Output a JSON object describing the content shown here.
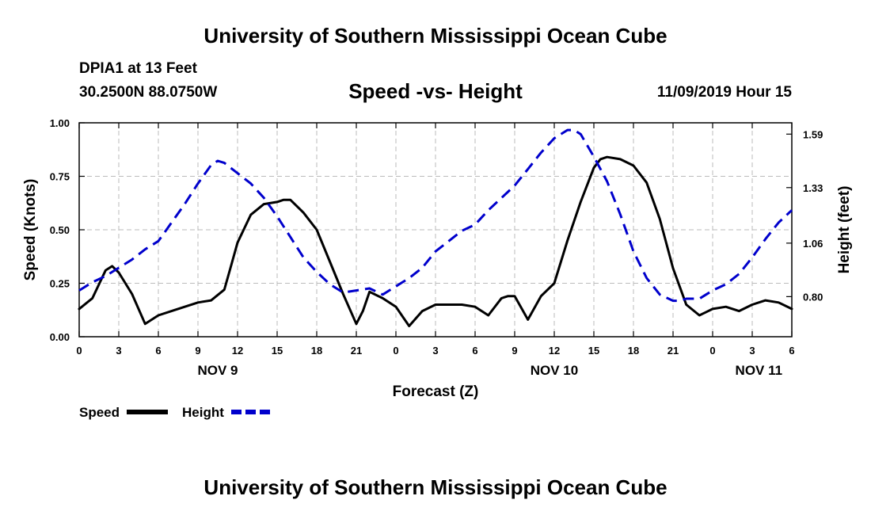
{
  "header": {
    "top_title": "University of Southern Mississippi Ocean Cube",
    "station": "DPIA1 at 13 Feet",
    "coords": "30.2500N 88.0750W",
    "date": "11/09/2019 Hour 15",
    "bottom_title": "University of Southern Mississippi Ocean Cube"
  },
  "chart_data": {
    "type": "line",
    "title": "Speed -vs- Height",
    "xlabel": "Forecast (Z)",
    "ylabel": "Speed (Knots)",
    "y2label": "Height (feet)",
    "xlim": [
      0,
      54
    ],
    "ylim": [
      0,
      1
    ],
    "y2lim": [
      0.605,
      1.645
    ],
    "grid": true,
    "x_ticks": [
      {
        "x": 0,
        "label": "0"
      },
      {
        "x": 3,
        "label": "3"
      },
      {
        "x": 6,
        "label": "6"
      },
      {
        "x": 9,
        "label": "9"
      },
      {
        "x": 12,
        "label": "12"
      },
      {
        "x": 15,
        "label": "15"
      },
      {
        "x": 18,
        "label": "18"
      },
      {
        "x": 21,
        "label": "21"
      },
      {
        "x": 24,
        "label": "0"
      },
      {
        "x": 27,
        "label": "3"
      },
      {
        "x": 30,
        "label": "6"
      },
      {
        "x": 33,
        "label": "9"
      },
      {
        "x": 36,
        "label": "12"
      },
      {
        "x": 39,
        "label": "15"
      },
      {
        "x": 42,
        "label": "18"
      },
      {
        "x": 45,
        "label": "21"
      },
      {
        "x": 48,
        "label": "0"
      },
      {
        "x": 51,
        "label": "3"
      },
      {
        "x": 54,
        "label": "6"
      }
    ],
    "y_ticks": [
      {
        "v": 0.0,
        "label": "0.00"
      },
      {
        "v": 0.25,
        "label": "0.25"
      },
      {
        "v": 0.5,
        "label": "0.50"
      },
      {
        "v": 0.75,
        "label": "0.75"
      },
      {
        "v": 1.0,
        "label": "1.00"
      }
    ],
    "y2_ticks": [
      {
        "v": 0.8,
        "label": "0.80"
      },
      {
        "v": 1.06,
        "label": "1.06"
      },
      {
        "v": 1.33,
        "label": "1.33"
      },
      {
        "v": 1.59,
        "label": "1.59"
      }
    ],
    "day_labels": [
      {
        "x": 10.5,
        "label": "NOV 9"
      },
      {
        "x": 36,
        "label": "NOV 10"
      },
      {
        "x": 51.5,
        "label": "NOV 11"
      }
    ],
    "series": [
      {
        "name": "Speed",
        "color": "#000000",
        "dashed": false,
        "axis": "left",
        "x": [
          0,
          1,
          2,
          2.5,
          3,
          4,
          5,
          6,
          7,
          8,
          9,
          10,
          11,
          11.5,
          12,
          13,
          14,
          15,
          15.5,
          16,
          17,
          18,
          19,
          20,
          21,
          21.5,
          22,
          23,
          24,
          25,
          26,
          27,
          28,
          29,
          30,
          31,
          32,
          32.5,
          33,
          34,
          35,
          36,
          37,
          38,
          39,
          39.5,
          40,
          41,
          42,
          43,
          44,
          45,
          46,
          47,
          48,
          49,
          50,
          51,
          52,
          53,
          54
        ],
        "values": [
          0.13,
          0.18,
          0.31,
          0.33,
          0.3,
          0.2,
          0.06,
          0.1,
          0.12,
          0.14,
          0.16,
          0.17,
          0.22,
          0.33,
          0.44,
          0.57,
          0.62,
          0.63,
          0.64,
          0.64,
          0.58,
          0.5,
          0.35,
          0.2,
          0.06,
          0.12,
          0.21,
          0.18,
          0.14,
          0.05,
          0.12,
          0.15,
          0.15,
          0.15,
          0.14,
          0.1,
          0.18,
          0.19,
          0.19,
          0.08,
          0.19,
          0.25,
          0.45,
          0.63,
          0.79,
          0.83,
          0.84,
          0.83,
          0.8,
          0.72,
          0.55,
          0.32,
          0.15,
          0.1,
          0.13,
          0.14,
          0.12,
          0.15,
          0.17,
          0.16,
          0.13
        ]
      },
      {
        "name": "Height",
        "color": "#0000cc",
        "dashed": true,
        "axis": "right",
        "x": [
          0,
          1,
          2,
          3,
          4,
          5,
          6,
          7,
          8,
          9,
          10,
          10.5,
          11,
          12,
          13,
          14,
          15,
          16,
          17,
          18,
          19,
          20,
          21,
          22,
          23,
          24,
          25,
          26,
          27,
          28,
          29,
          30,
          31,
          32,
          33,
          34,
          35,
          36,
          37,
          37.5,
          38,
          39,
          40,
          41,
          42,
          43,
          44,
          45,
          45.5,
          46,
          47,
          48,
          49,
          50,
          51,
          52,
          53,
          54
        ],
        "values": [
          0.83,
          0.87,
          0.9,
          0.94,
          0.98,
          1.03,
          1.07,
          1.16,
          1.25,
          1.35,
          1.44,
          1.46,
          1.45,
          1.4,
          1.35,
          1.28,
          1.19,
          1.09,
          0.99,
          0.92,
          0.86,
          0.82,
          0.83,
          0.84,
          0.81,
          0.85,
          0.89,
          0.94,
          1.02,
          1.07,
          1.12,
          1.15,
          1.22,
          1.28,
          1.34,
          1.42,
          1.5,
          1.57,
          1.61,
          1.61,
          1.59,
          1.48,
          1.36,
          1.2,
          1.02,
          0.89,
          0.81,
          0.78,
          0.78,
          0.79,
          0.79,
          0.83,
          0.86,
          0.91,
          0.99,
          1.08,
          1.16,
          1.22
        ]
      }
    ],
    "legend": [
      {
        "label": "Speed",
        "color": "#000000",
        "dashed": false
      },
      {
        "label": "Height",
        "color": "#0000cc",
        "dashed": true
      }
    ]
  }
}
